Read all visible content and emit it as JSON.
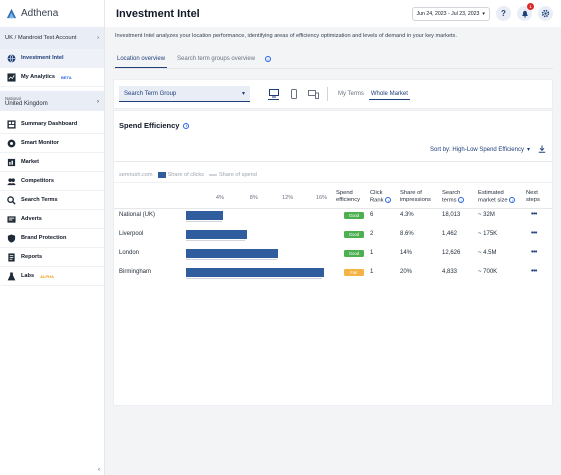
{
  "app": {
    "name": "Adthena"
  },
  "account": {
    "label": "UK / Mandroid Test Account"
  },
  "sidebar": {
    "top_items": [
      {
        "label": "Investment Intel",
        "icon": "globe-icon",
        "active": true
      },
      {
        "label": "My Analytics",
        "icon": "analytics-icon",
        "badge": "BETA"
      }
    ],
    "region": {
      "small": "National",
      "main": "United Kingdom"
    },
    "items": [
      {
        "label": "Summary Dashboard",
        "icon": "dashboard-icon"
      },
      {
        "label": "Smart Monitor",
        "icon": "monitor-icon"
      },
      {
        "label": "Market",
        "icon": "market-icon"
      },
      {
        "label": "Competitors",
        "icon": "competitors-icon"
      },
      {
        "label": "Search Terms",
        "icon": "search-icon"
      },
      {
        "label": "Adverts",
        "icon": "adverts-icon"
      },
      {
        "label": "Brand Protection",
        "icon": "shield-icon"
      },
      {
        "label": "Reports",
        "icon": "reports-icon"
      },
      {
        "label": "Labs",
        "icon": "labs-icon",
        "badge": "ALPHA"
      }
    ],
    "collapse_label": "‹"
  },
  "header": {
    "title": "Investment Intel",
    "date_range": "Jun 24, 2023 - Jul 23, 2023",
    "notification_count": "1"
  },
  "description": "Investment Intel analyzes your location performance, identifying areas of efficiency optimization and levels of demand in your key markets.",
  "tabs": [
    {
      "label": "Location overview",
      "active": true
    },
    {
      "label": "Search term groups overview",
      "active": false
    }
  ],
  "filter": {
    "group_select": "Search Term Group",
    "toggle": [
      {
        "label": "My Terms",
        "active": false
      },
      {
        "label": "Whole Market",
        "active": true
      }
    ]
  },
  "card": {
    "title": "Spend Efficiency",
    "sort_label": "Sort by: High-Low Spend Efficiency",
    "legend": {
      "source": "semrush.com",
      "clicks": "Share of clicks",
      "spend": "Share of spend"
    },
    "columns": {
      "efficiency": [
        "Spend",
        "efficiency"
      ],
      "rank": [
        "Click",
        "Rank"
      ],
      "impressions": [
        "Share of",
        "impressions"
      ],
      "terms": [
        "Search",
        "terms"
      ],
      "market": [
        "Estimated",
        "market size"
      ],
      "next": [
        "Next",
        "steps"
      ]
    }
  },
  "colors": {
    "good": "#4caf50",
    "fair": "#f5b342",
    "bar": "#2f5d9e"
  },
  "chart_data": {
    "type": "bar",
    "orientation": "horizontal",
    "ticks": [
      "4%",
      "8%",
      "12%",
      "16%"
    ],
    "xlim": [
      0,
      17
    ],
    "categories": [
      "National (UK)",
      "Liverpool",
      "London",
      "Birmingham"
    ],
    "series": [
      {
        "name": "Share of clicks",
        "values": [
          4.4,
          7.2,
          10.9,
          16.3
        ]
      },
      {
        "name": "Share of spend",
        "values": [
          4.3,
          7.0,
          10.7,
          16.1
        ]
      }
    ],
    "rows": [
      {
        "location": "National (UK)",
        "efficiency": "Good",
        "status": "good",
        "rank": "6",
        "impressions": "4.3%",
        "terms": "18,013",
        "market": "~ 32M"
      },
      {
        "location": "Liverpool",
        "efficiency": "Good",
        "status": "good",
        "rank": "2",
        "impressions": "8.6%",
        "terms": "1,462",
        "market": "~ 175K"
      },
      {
        "location": "London",
        "efficiency": "Good",
        "status": "good",
        "rank": "1",
        "impressions": "14%",
        "terms": "12,626",
        "market": "~ 4.5M"
      },
      {
        "location": "Birmingham",
        "efficiency": "Fair",
        "status": "fair",
        "rank": "1",
        "impressions": "20%",
        "terms": "4,833",
        "market": "~ 700K"
      }
    ],
    "next_steps": "•••"
  }
}
